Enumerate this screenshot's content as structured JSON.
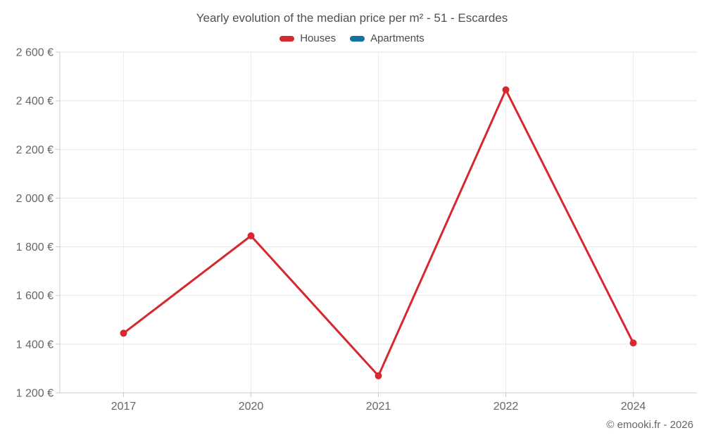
{
  "header": {
    "title": "Yearly evolution of the median price per m² - 51 - Escardes",
    "legend": [
      {
        "label": "Houses",
        "color": "#d6282e"
      },
      {
        "label": "Apartments",
        "color": "#1272a3"
      }
    ]
  },
  "footer": {
    "copyright": "© emooki.fr - 2026"
  },
  "colors": {
    "houses": "#d6282e",
    "apartments": "#1272a3",
    "gridline": "#e6e6e6",
    "vertical_gridline": "#ededed",
    "axis": "#cccccc",
    "tick_text": "#666666",
    "title_text": "#4f4f4f"
  },
  "chart_data": {
    "type": "line",
    "title": "Yearly evolution of the median price per m² - 51 - Escardes",
    "categories": [
      "2017",
      "2020",
      "2021",
      "2022",
      "2024"
    ],
    "series": [
      {
        "name": "Houses",
        "color": "#d6282e",
        "values": [
          1445,
          1845,
          1270,
          2445,
          1405
        ]
      },
      {
        "name": "Apartments",
        "color": "#1272a3",
        "values": []
      }
    ],
    "xlabel": "",
    "ylabel": "",
    "ylim": [
      1200,
      2600
    ],
    "ytick_step": 200,
    "ytick_labels": [
      "1 200 €",
      "1 400 €",
      "1 600 €",
      "1 800 €",
      "2 000 €",
      "2 200 €",
      "2 400 €",
      "2 600 €"
    ],
    "grid": true,
    "legend_position": "top",
    "marker_radius": 5,
    "line_width": 3
  }
}
